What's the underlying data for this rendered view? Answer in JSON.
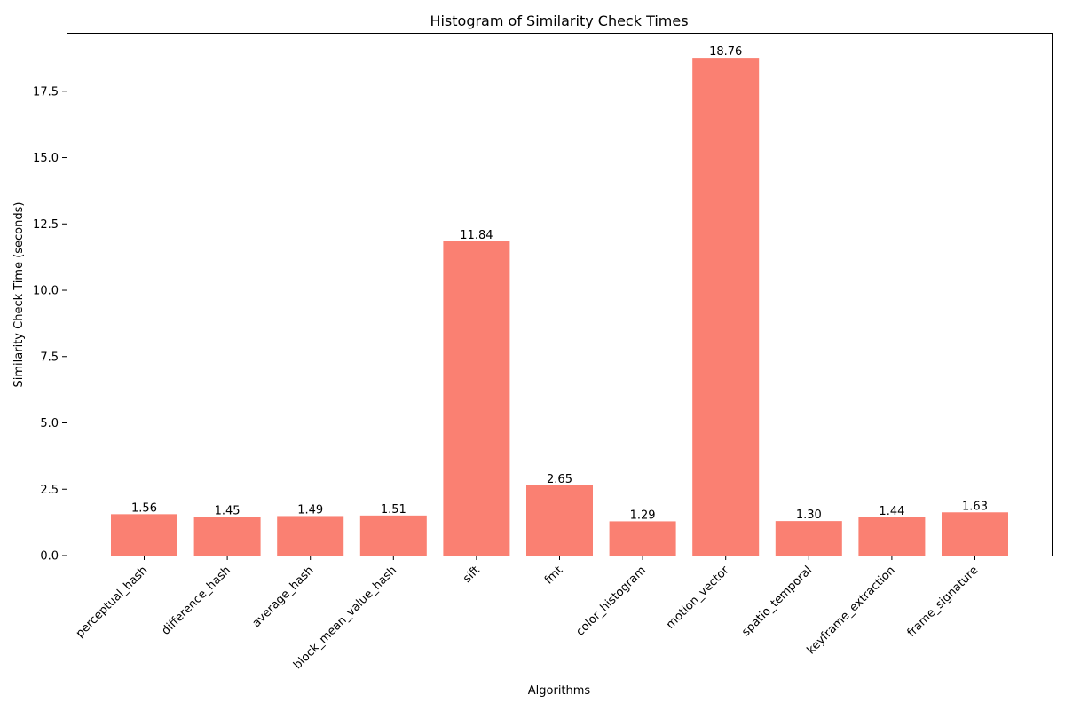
{
  "chart_data": {
    "type": "bar",
    "title": "Histogram of Similarity Check Times",
    "xlabel": "Algorithms",
    "ylabel": "Similarity Check Time (seconds)",
    "categories": [
      "perceptual_hash",
      "difference_hash",
      "average_hash",
      "block_mean_value_hash",
      "sift",
      "fmt",
      "color_histogram",
      "motion_vector",
      "spatio_temporal",
      "keyframe_extraction",
      "frame_signature"
    ],
    "values": [
      1.56,
      1.45,
      1.49,
      1.51,
      11.84,
      2.65,
      1.29,
      18.76,
      1.3,
      1.44,
      1.63
    ],
    "data_labels": [
      "1.56",
      "1.45",
      "1.49",
      "1.51",
      "11.84",
      "2.65",
      "1.29",
      "18.76",
      "1.30",
      "1.44",
      "1.63"
    ],
    "ylim": [
      0,
      19.7
    ],
    "yticks": [
      0,
      2.5,
      5,
      7.5,
      10,
      12.5,
      15,
      17.5
    ],
    "ytick_labels": [
      "0.0",
      "2.5",
      "5.0",
      "7.5",
      "10.0",
      "12.5",
      "15.0",
      "17.5"
    ],
    "bar_color": "#fa8072",
    "grid": false,
    "legend": "none"
  }
}
